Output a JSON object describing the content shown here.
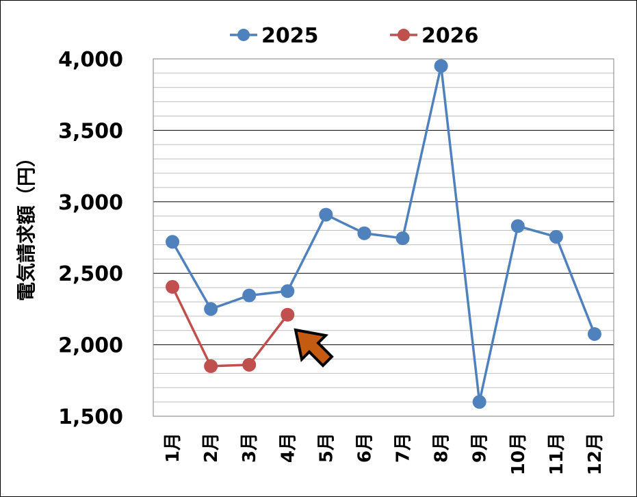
{
  "chart_data": {
    "type": "line",
    "title": "",
    "xlabel": "",
    "ylabel": "電気請求額（円）",
    "categories": [
      "1月",
      "2月",
      "3月",
      "4月",
      "5月",
      "6月",
      "7月",
      "8月",
      "9月",
      "10月",
      "11月",
      "12月"
    ],
    "series": [
      {
        "name": "2025",
        "color": "#4f81bd",
        "values": [
          2720,
          2250,
          2345,
          2375,
          2910,
          2780,
          2745,
          3950,
          1600,
          2830,
          2755,
          2075
        ]
      },
      {
        "name": "2026",
        "color": "#c0504d",
        "values": [
          2405,
          1850,
          1860,
          2210,
          null,
          null,
          null,
          null,
          null,
          null,
          null,
          null
        ]
      }
    ],
    "ylim": [
      1500,
      4000
    ],
    "yticks": [
      1500,
      2000,
      2500,
      3000,
      3500,
      4000
    ],
    "ytick_labels": [
      "1,500",
      "2,000",
      "2,500",
      "3,000",
      "3,500",
      "4,000"
    ],
    "grid": {
      "major": true,
      "minor": true
    },
    "legend": "top",
    "annotation": {
      "type": "arrow",
      "color": "#c55a11",
      "points_to": "4月 2026"
    }
  }
}
